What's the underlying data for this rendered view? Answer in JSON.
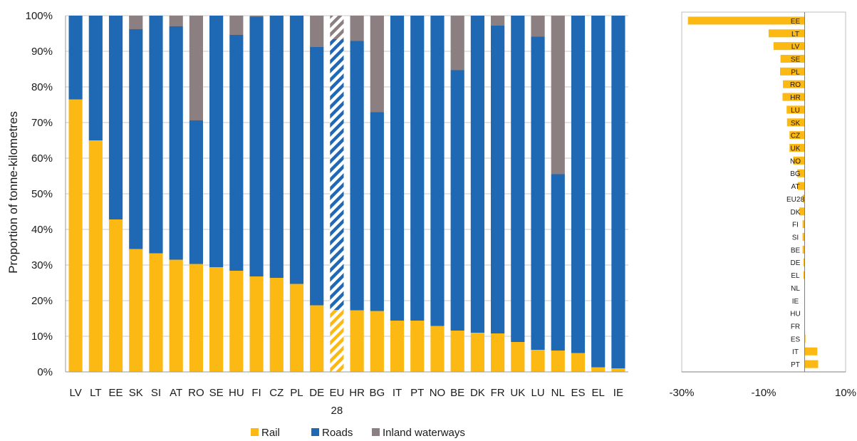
{
  "chart_data": [
    {
      "type": "bar",
      "stacked": true,
      "ylabel": "Proportion of tonne-kilometres",
      "ylim": [
        0,
        100
      ],
      "yticks": [
        "0%",
        "10%",
        "20%",
        "30%",
        "40%",
        "50%",
        "60%",
        "70%",
        "80%",
        "90%",
        "100%"
      ],
      "categories": [
        "LV",
        "LT",
        "EE",
        "SK",
        "SI",
        "AT",
        "RO",
        "SE",
        "HU",
        "FI",
        "CZ",
        "PL",
        "DE",
        "EU 28",
        "HR",
        "BG",
        "IT",
        "PT",
        "NO",
        "BE",
        "DK",
        "FR",
        "UK",
        "LU",
        "NL",
        "ES",
        "EL",
        "IE"
      ],
      "highlight_category": "EU 28",
      "series": [
        {
          "name": "Rail",
          "color": "#FDB913",
          "values": [
            76.5,
            65,
            42.8,
            34.5,
            33.3,
            31.5,
            30.3,
            29.4,
            28.4,
            26.8,
            26.4,
            24.7,
            18.7,
            17.4,
            17.3,
            17.1,
            14.4,
            14.4,
            12.9,
            11.6,
            11.0,
            10.8,
            8.4,
            6.2,
            6.0,
            5.3,
            1.3,
            1.0
          ]
        },
        {
          "name": "Roads",
          "color": "#1F68B3",
          "values": [
            23.5,
            35,
            57.2,
            61.7,
            66.7,
            65.5,
            40.3,
            70.6,
            66.2,
            72.9,
            73.6,
            75.3,
            72.5,
            76.0,
            75.6,
            55.8,
            85.6,
            85.6,
            87.1,
            73.1,
            89.0,
            86.4,
            91.6,
            87.9,
            49.5,
            94.7,
            98.7,
            99.0
          ]
        },
        {
          "name": "Inland waterways",
          "color": "#8C7F82",
          "values": [
            0,
            0,
            0,
            3.8,
            0,
            3.0,
            29.4,
            0,
            5.4,
            0.3,
            0,
            0,
            8.8,
            6.6,
            7.1,
            27.1,
            0,
            0,
            0,
            15.3,
            0,
            2.8,
            0,
            5.9,
            44.5,
            0,
            0,
            0
          ]
        }
      ],
      "legend_position": "bottom",
      "grid": true
    },
    {
      "type": "bar",
      "orientation": "horizontal",
      "xlim": [
        -30,
        10
      ],
      "xticks": [
        "-30%",
        "-10%",
        "10%"
      ],
      "categories": [
        "EE",
        "LT",
        "LV",
        "SE",
        "PL",
        "RO",
        "HR",
        "LU",
        "SK",
        "CZ",
        "UK",
        "NO",
        "BG",
        "AT",
        "EU28",
        "DK",
        "FI",
        "SI",
        "BE",
        "DE",
        "EL",
        "NL",
        "IE",
        "HU",
        "FR",
        "ES",
        "IT",
        "PT"
      ],
      "values": [
        -28.5,
        -8.8,
        -7.6,
        -5.9,
        -6.0,
        -5.3,
        -5.4,
        -4.4,
        -4.3,
        -3.7,
        -3.7,
        -2.8,
        -1.8,
        -1.7,
        -0.5,
        -1.3,
        -0.5,
        -0.5,
        -0.5,
        -0.3,
        -0.3,
        0,
        0,
        0,
        0,
        0.2,
        3.1,
        3.3
      ],
      "color": "#FDB913",
      "grid": false
    }
  ]
}
